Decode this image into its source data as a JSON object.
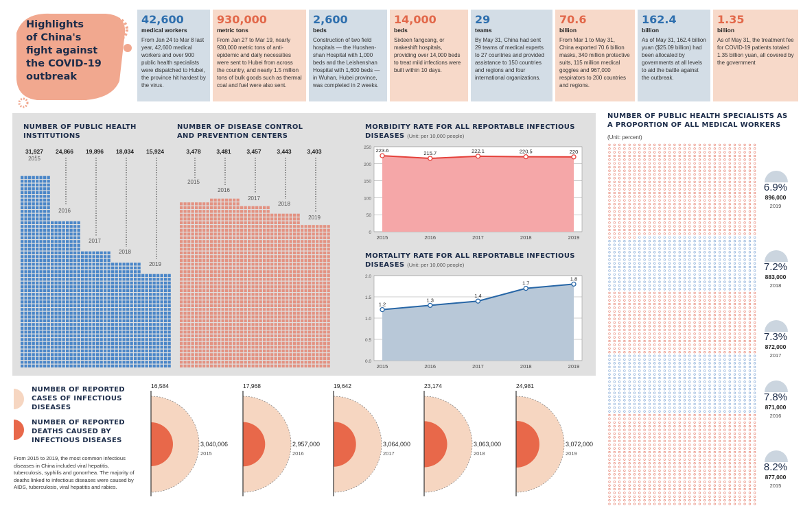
{
  "title": "Highlights of China's fight against the COVID-19 outbreak",
  "title_lines": [
    "Highlights",
    "of China's",
    "fight against",
    "the COVID-19",
    "outbreak"
  ],
  "stats": [
    {
      "value": "42,600",
      "unit": "medical workers",
      "desc": "From Jan 24 to Mar 8 last year, 42,600 medical workers and over 900 public health specialists were dispatched to Hubei, the province hit hardest by the virus.",
      "color": "blue"
    },
    {
      "value": "930,000",
      "unit": "metric tons",
      "desc": "From Jan 27 to Mar 19, nearly 930,000 metric tons of anti-epidemic and daily necessities were sent to Hubei from across the country, and nearly 1.5 million tons of bulk goods such as thermal coal and fuel were also sent.",
      "color": "peach"
    },
    {
      "value": "2,600",
      "unit": "beds",
      "desc": "Construction of two field hospitals — the Huoshen-shan Hospital with 1,000 beds and the Leishenshan Hospital with 1,600 beds — in Wuhan, Hubei province, was completed in 2 weeks.",
      "color": "blue"
    },
    {
      "value": "14,000",
      "unit": "beds",
      "desc": "Sixteen fangcang, or makeshift hospitals, providing over 14,000 beds to treat mild infections were built within 10 days.",
      "color": "peach"
    },
    {
      "value": "29",
      "unit": "teams",
      "desc": "By May 31, China had sent 29 teams of medical experts to 27 countries and provided assistance to 150 countries and regions and four international organizations.",
      "color": "blue"
    },
    {
      "value": "70.6",
      "unit": "billion",
      "desc": "From Mar 1 to May 31, China exported 70.6 billion masks, 340 million protective suits, 115 million medical goggles and 967,000 respirators to 200 countries and regions.",
      "color": "peach"
    },
    {
      "value": "162.4",
      "unit": "billion",
      "desc": "As of May 31, 162.4 billion yuan ($25.09 billion) had been allocated by governments at all levels to aid the battle against the outbreak.",
      "color": "blue"
    },
    {
      "value": "1.35",
      "unit": "billion",
      "desc": "As of May 31, the treatment fee for COVID-19 patients totaled 1.35 billion yuan, all covered by the government",
      "color": "peach"
    }
  ],
  "chart_data": [
    {
      "id": "institutions",
      "type": "bar",
      "title": "NUMBER OF PUBLIC HEALTH INSTITUTIONS",
      "categories": [
        "2015",
        "2016",
        "2017",
        "2018",
        "2019"
      ],
      "values": [
        31927,
        24866,
        19896,
        18034,
        15924
      ],
      "labels": [
        "31,927",
        "24,866",
        "19,896",
        "18,034",
        "15,924"
      ],
      "color": "#4a86c8"
    },
    {
      "id": "cdc",
      "type": "bar",
      "title": "NUMBER OF DISEASE CONTROL AND PREVENTION CENTERS",
      "categories": [
        "2015",
        "2016",
        "2017",
        "2018",
        "2019"
      ],
      "values": [
        3478,
        3481,
        3457,
        3443,
        3403
      ],
      "labels": [
        "3,478",
        "3,481",
        "3,457",
        "3,443",
        "3,403"
      ],
      "color": "#e39282"
    },
    {
      "id": "morbidity",
      "type": "area",
      "title": "MORBIDITY RATE FOR ALL REPORTABLE INFECTIOUS DISEASES",
      "unit": "(Unit: per 10,000 people)",
      "x": [
        "2015",
        "2016",
        "2017",
        "2018",
        "2019"
      ],
      "values": [
        223.6,
        215.7,
        222.1,
        220.5,
        220
      ],
      "ylim": [
        0,
        250
      ],
      "yticks": [
        "0",
        "50",
        "100",
        "150",
        "200",
        "250"
      ],
      "color": "#e5413a",
      "fill": "#f5a7a8"
    },
    {
      "id": "mortality",
      "type": "area",
      "title": "MORTALITY RATE FOR ALL REPORTABLE INFECTIOUS DISEASES",
      "unit": "(Unit: per 10,000 people)",
      "x": [
        "2015",
        "2016",
        "2017",
        "2018",
        "2019"
      ],
      "values": [
        1.2,
        1.3,
        1.4,
        1.7,
        1.8
      ],
      "ylim": [
        0,
        2.0
      ],
      "yticks": [
        "0.0",
        "0.5",
        "1.0",
        "1.5",
        "2.0"
      ],
      "color": "#2766a6",
      "fill": "#b8c8d8"
    },
    {
      "id": "cases",
      "type": "semicircle",
      "legend": [
        "NUMBER OF REPORTED CASES OF INFECTIOUS DISEASES",
        "NUMBER OF REPORTED DEATHS CAUSED BY INFECTIOUS DISEASES"
      ],
      "note": "From 2015 to 2019, the most common infectious diseases in China included viral hepatitis, tuberculosis, syphilis and gonorrhea. The majority of deaths linked to infectious diseases were caused by AIDS, tuberculosis, viral hepatitis and rabies.",
      "years": [
        "2015",
        "2016",
        "2017",
        "2018",
        "2019"
      ],
      "cases": [
        "3,040,006",
        "2,957,000",
        "3,064,000",
        "3,063,000",
        "3,072,000"
      ],
      "deaths": [
        "16,584",
        "17,968",
        "19,642",
        "23,174",
        "24,981"
      ],
      "case_color": "#f6d6c1",
      "death_color": "#e8684a"
    },
    {
      "id": "specialists",
      "type": "table",
      "title": "NUMBER OF PUBLIC HEALTH SPECIALISTS AS A PROPORTION OF ALL MEDICAL WORKERS",
      "unit": "(Unit: percent)",
      "rows": [
        {
          "pct": "6.9",
          "count": "896,000",
          "year": "2019"
        },
        {
          "pct": "7.2",
          "count": "883,000",
          "year": "2018"
        },
        {
          "pct": "7.3",
          "count": "872,000",
          "year": "2017"
        },
        {
          "pct": "7.8",
          "count": "871,000",
          "year": "2016"
        },
        {
          "pct": "8.2",
          "count": "877,000",
          "year": "2015"
        }
      ],
      "pct_sign": "%"
    }
  ]
}
